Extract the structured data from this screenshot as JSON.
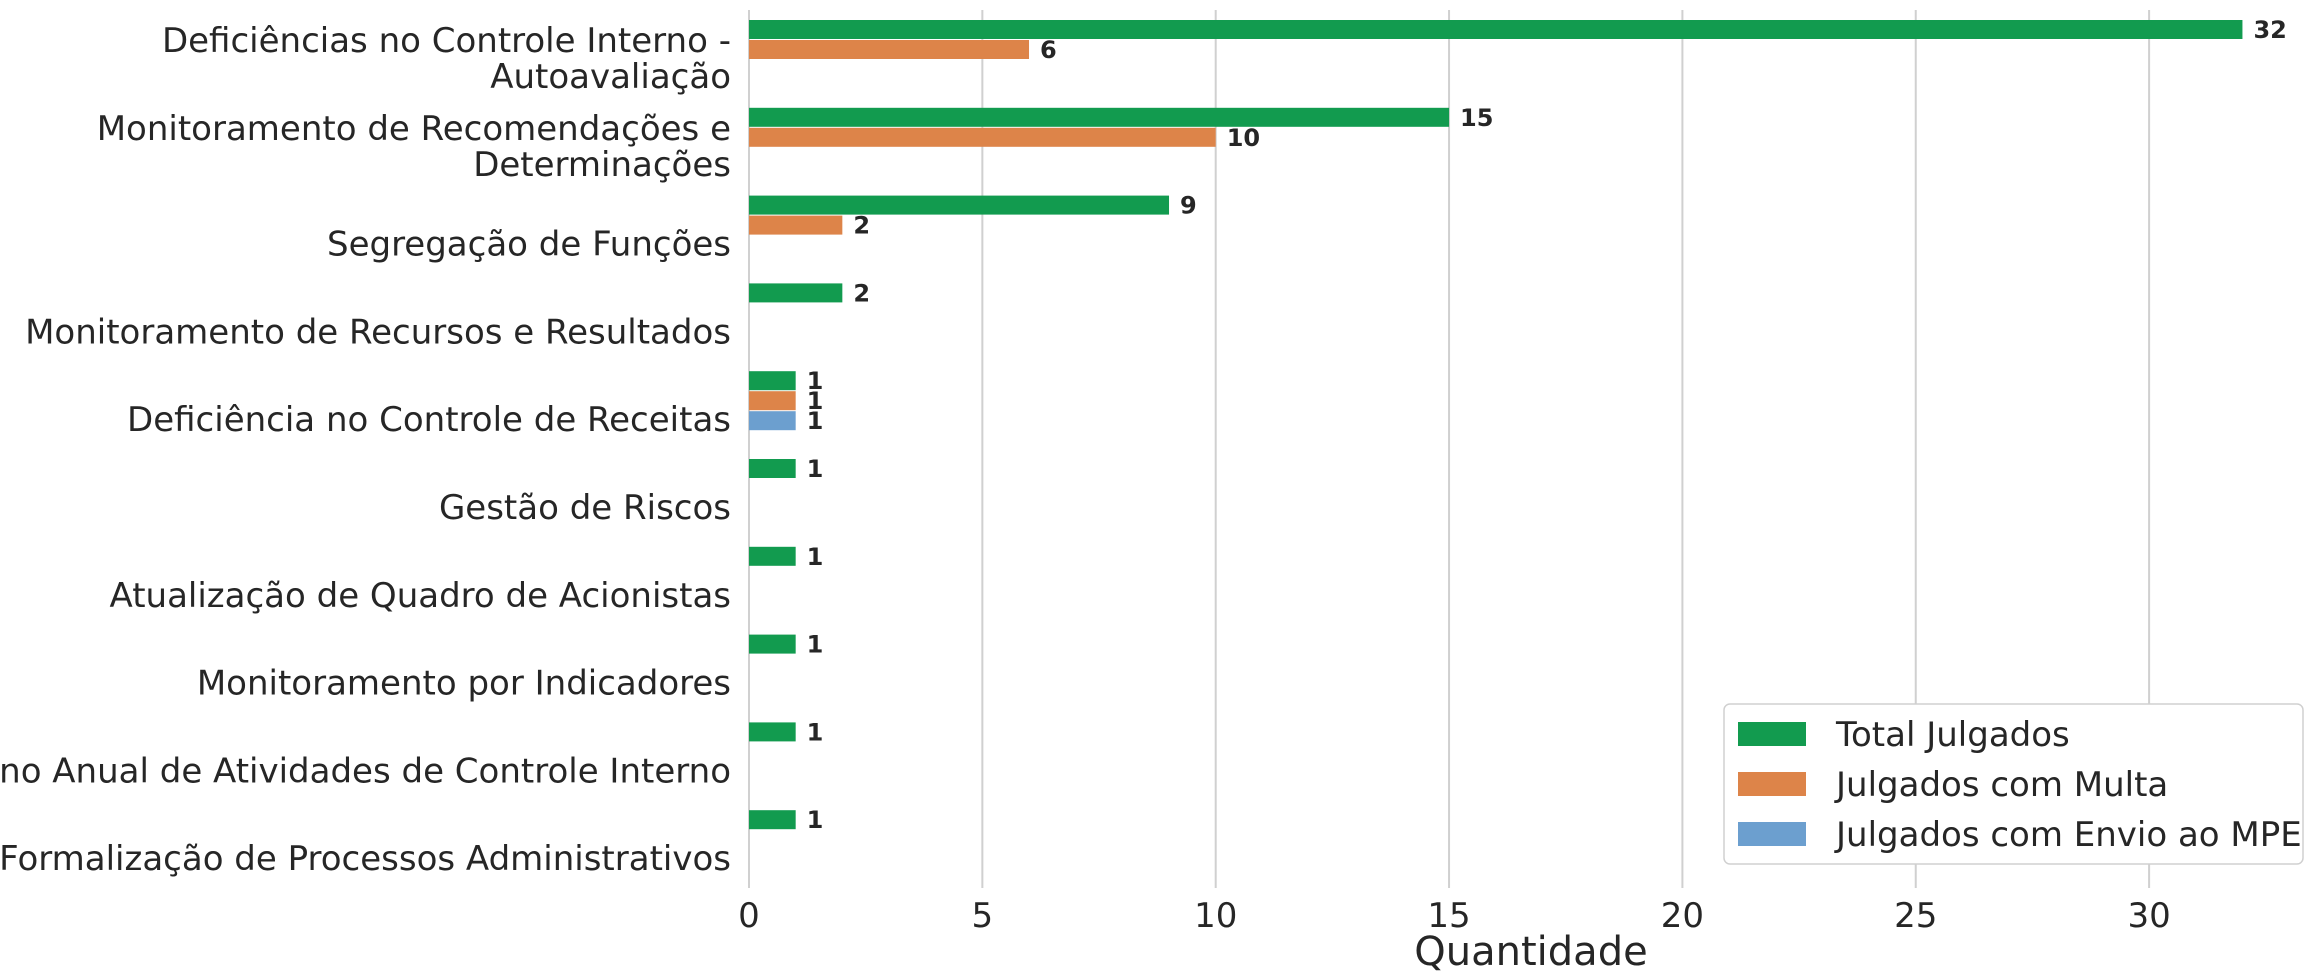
{
  "chart_data": {
    "type": "bar",
    "orientation": "horizontal",
    "categories": [
      "Deficiências no Controle Interno -\nAutoavaliação",
      "Monitoramento de Recomendações e\nDeterminações",
      "Segregação de Funções",
      "Monitoramento de Recursos e Resultados",
      "Deficiência no Controle de Receitas",
      "Gestão de Riscos",
      "Atualização de Quadro de Acionistas",
      "Monitoramento por Indicadores",
      "Plano Anual de Atividades de Controle Interno",
      "Formalização de Processos Administrativos"
    ],
    "series": [
      {
        "name": "Total Julgados",
        "color": "#129b4f",
        "values": [
          32,
          15,
          9,
          2,
          1,
          1,
          1,
          1,
          1,
          1
        ]
      },
      {
        "name": "Julgados com Multa",
        "color": "#dd8449",
        "values": [
          6,
          10,
          2,
          null,
          1,
          null,
          null,
          null,
          null,
          null
        ]
      },
      {
        "name": "Julgados com Envio ao MPE",
        "color": "#6c9fcf",
        "values": [
          null,
          null,
          null,
          null,
          1,
          null,
          null,
          null,
          null,
          null
        ]
      }
    ],
    "xlabel": "Quantidade",
    "ylabel": "",
    "xlim": [
      0,
      33
    ],
    "xticks": [
      0,
      5,
      10,
      15,
      20,
      25,
      30
    ],
    "grid": "vertical",
    "legend_position": "lower-right"
  }
}
